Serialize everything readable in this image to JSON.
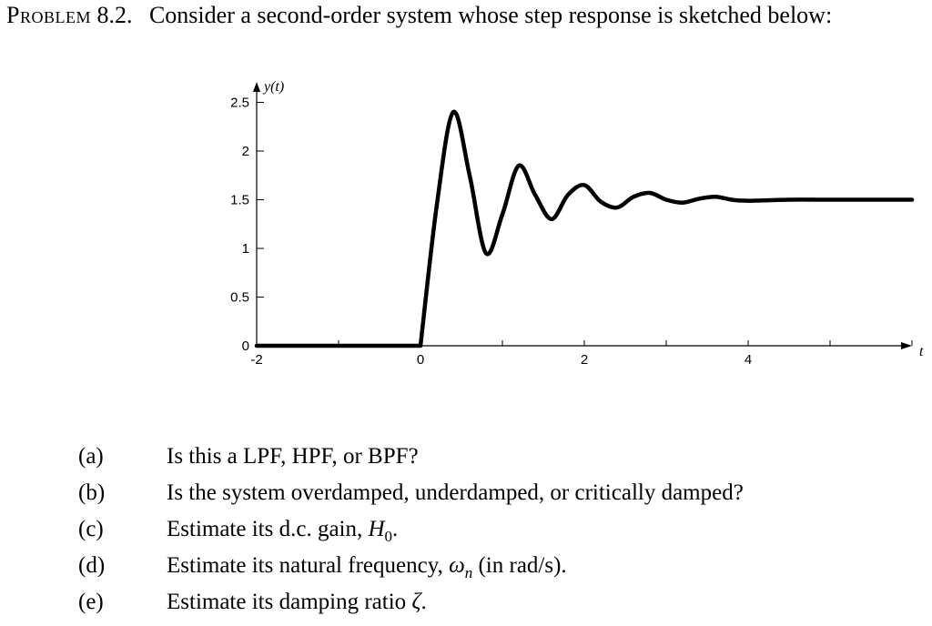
{
  "header": {
    "problem_label": "Problem",
    "problem_number": "8.2.",
    "statement": "Consider a second-order system whose step response is sketched below:"
  },
  "chart_data": {
    "type": "line",
    "ylabel": "y(t)",
    "xlabel": "t",
    "xlim": [
      -2,
      6
    ],
    "ylim": [
      0,
      2.5
    ],
    "x_ticks": [
      "-2",
      "0",
      "2",
      "4"
    ],
    "y_ticks": [
      "0",
      "0.5",
      "1",
      "1.5",
      "2",
      "2.5"
    ],
    "series": [
      {
        "values_description_free": true,
        "x": [
          -2,
          0,
          0.2,
          0.4,
          0.6,
          0.8,
          1.0,
          1.2,
          1.4,
          1.6,
          1.8,
          2.0,
          2.2,
          2.4,
          2.6,
          2.8,
          3.0,
          3.2,
          3.4,
          3.6,
          3.8,
          4.0,
          4.5,
          5.0,
          5.5,
          6.0
        ],
        "y": [
          0,
          0,
          1.45,
          2.4,
          1.75,
          0.95,
          1.35,
          1.85,
          1.55,
          1.3,
          1.55,
          1.65,
          1.48,
          1.42,
          1.53,
          1.57,
          1.5,
          1.47,
          1.51,
          1.53,
          1.5,
          1.49,
          1.5,
          1.5,
          1.5,
          1.5
        ]
      }
    ]
  },
  "questions": [
    {
      "label": "(a)",
      "text": "Is this a LPF, HPF, or BPF?"
    },
    {
      "label": "(b)",
      "text": "Is the system overdamped, underdamped, or critically damped?"
    },
    {
      "label": "(c)",
      "text_pre": "Estimate its d.c. gain, ",
      "symbol": "H",
      "sub": "0",
      "text_post": "."
    },
    {
      "label": "(d)",
      "text_pre": "Estimate its natural frequency, ",
      "symbol": "ω",
      "sub": "n",
      "text_post": " (in rad/s)."
    },
    {
      "label": "(e)",
      "text_pre": "Estimate its damping ratio ",
      "symbol": "ζ",
      "text_post": "."
    }
  ]
}
